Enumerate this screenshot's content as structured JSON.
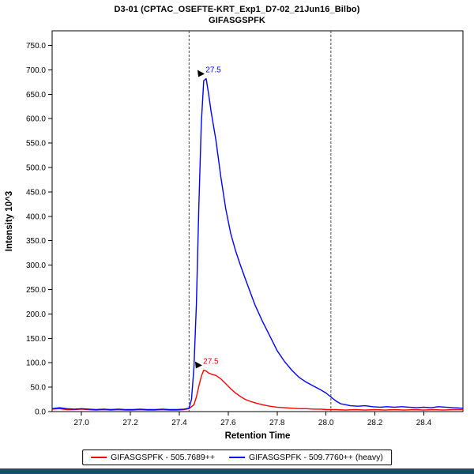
{
  "window": {
    "footer_color": "#1b4f63"
  },
  "chart_data": {
    "type": "line",
    "title": "D3-01 (CPTAC_OSEFTE-KRT_Exp1_D7-02_21Jun16_Bilbo)",
    "subtitle": "GIFASGSPFK",
    "xlabel": "Retention Time",
    "ylabel": "Intensity 10^3",
    "xlim": [
      26.88,
      28.56
    ],
    "ylim": [
      0,
      780
    ],
    "xticks": [
      27.0,
      27.2,
      27.4,
      27.6,
      27.8,
      28.0,
      28.2,
      28.4
    ],
    "yticks": [
      0,
      50,
      100,
      150,
      200,
      250,
      300,
      350,
      400,
      450,
      500,
      550,
      600,
      650,
      700,
      750
    ],
    "grid": false,
    "legend_position": "bottom",
    "integration_boundaries": [
      27.44,
      28.02
    ],
    "series": [
      {
        "id": "light",
        "name": "GIFASGSPFK - 505.7689++",
        "color": "#ff0000",
        "annotation": {
          "label": "27.5",
          "x": 27.5,
          "y": 85
        },
        "points": [
          [
            26.88,
            5
          ],
          [
            26.91,
            6
          ],
          [
            26.94,
            4
          ],
          [
            26.97,
            4
          ],
          [
            27.0,
            5
          ],
          [
            27.03,
            4
          ],
          [
            27.06,
            3
          ],
          [
            27.09,
            4
          ],
          [
            27.12,
            3
          ],
          [
            27.15,
            4
          ],
          [
            27.18,
            3
          ],
          [
            27.21,
            3
          ],
          [
            27.24,
            4
          ],
          [
            27.27,
            3
          ],
          [
            27.3,
            3
          ],
          [
            27.33,
            4
          ],
          [
            27.36,
            3
          ],
          [
            27.39,
            3
          ],
          [
            27.42,
            4
          ],
          [
            27.44,
            6
          ],
          [
            27.46,
            14
          ],
          [
            27.47,
            30
          ],
          [
            27.48,
            52
          ],
          [
            27.49,
            72
          ],
          [
            27.5,
            85
          ],
          [
            27.51,
            83
          ],
          [
            27.52,
            79
          ],
          [
            27.53,
            77
          ],
          [
            27.55,
            74
          ],
          [
            27.57,
            67
          ],
          [
            27.59,
            57
          ],
          [
            27.61,
            47
          ],
          [
            27.63,
            38
          ],
          [
            27.65,
            31
          ],
          [
            27.67,
            25
          ],
          [
            27.69,
            21
          ],
          [
            27.71,
            18
          ],
          [
            27.74,
            14
          ],
          [
            27.77,
            11
          ],
          [
            27.8,
            9
          ],
          [
            27.83,
            8
          ],
          [
            27.86,
            7
          ],
          [
            27.89,
            6
          ],
          [
            27.92,
            6
          ],
          [
            27.95,
            5
          ],
          [
            27.98,
            5
          ],
          [
            28.0,
            4
          ],
          [
            28.04,
            4
          ],
          [
            28.08,
            3
          ],
          [
            28.12,
            4
          ],
          [
            28.16,
            3
          ],
          [
            28.2,
            4
          ],
          [
            28.24,
            3
          ],
          [
            28.28,
            4
          ],
          [
            28.32,
            3
          ],
          [
            28.36,
            4
          ],
          [
            28.4,
            3
          ],
          [
            28.44,
            4
          ],
          [
            28.48,
            3
          ],
          [
            28.52,
            4
          ],
          [
            28.56,
            4
          ]
        ]
      },
      {
        "id": "heavy",
        "name": "GIFASGSPFK - 509.7760++ (heavy)",
        "color": "#0000ff",
        "annotation": {
          "label": "27.5",
          "x": 27.51,
          "y": 682
        },
        "points": [
          [
            26.88,
            6
          ],
          [
            26.91,
            8
          ],
          [
            26.94,
            6
          ],
          [
            26.97,
            5
          ],
          [
            27.0,
            6
          ],
          [
            27.03,
            5
          ],
          [
            27.06,
            4
          ],
          [
            27.09,
            5
          ],
          [
            27.12,
            4
          ],
          [
            27.15,
            5
          ],
          [
            27.18,
            4
          ],
          [
            27.21,
            4
          ],
          [
            27.24,
            5
          ],
          [
            27.27,
            4
          ],
          [
            27.3,
            4
          ],
          [
            27.33,
            5
          ],
          [
            27.36,
            4
          ],
          [
            27.39,
            4
          ],
          [
            27.42,
            5
          ],
          [
            27.44,
            7
          ],
          [
            27.45,
            25
          ],
          [
            27.46,
            90
          ],
          [
            27.47,
            220
          ],
          [
            27.48,
            420
          ],
          [
            27.49,
            590
          ],
          [
            27.5,
            678
          ],
          [
            27.51,
            682
          ],
          [
            27.52,
            650
          ],
          [
            27.53,
            615
          ],
          [
            27.55,
            555
          ],
          [
            27.57,
            480
          ],
          [
            27.59,
            415
          ],
          [
            27.61,
            365
          ],
          [
            27.63,
            330
          ],
          [
            27.65,
            300
          ],
          [
            27.67,
            272
          ],
          [
            27.69,
            245
          ],
          [
            27.71,
            218
          ],
          [
            27.74,
            185
          ],
          [
            27.77,
            155
          ],
          [
            27.8,
            125
          ],
          [
            27.83,
            103
          ],
          [
            27.86,
            85
          ],
          [
            27.89,
            70
          ],
          [
            27.92,
            60
          ],
          [
            27.95,
            52
          ],
          [
            27.98,
            44
          ],
          [
            28.0,
            38
          ],
          [
            28.02,
            30
          ],
          [
            28.04,
            22
          ],
          [
            28.06,
            16
          ],
          [
            28.08,
            14
          ],
          [
            28.1,
            12
          ],
          [
            28.13,
            11
          ],
          [
            28.16,
            12
          ],
          [
            28.19,
            10
          ],
          [
            28.22,
            9
          ],
          [
            28.25,
            10
          ],
          [
            28.28,
            9
          ],
          [
            28.31,
            10
          ],
          [
            28.34,
            9
          ],
          [
            28.37,
            8
          ],
          [
            28.4,
            9
          ],
          [
            28.43,
            8
          ],
          [
            28.46,
            10
          ],
          [
            28.49,
            9
          ],
          [
            28.52,
            8
          ],
          [
            28.56,
            7
          ]
        ]
      }
    ]
  }
}
